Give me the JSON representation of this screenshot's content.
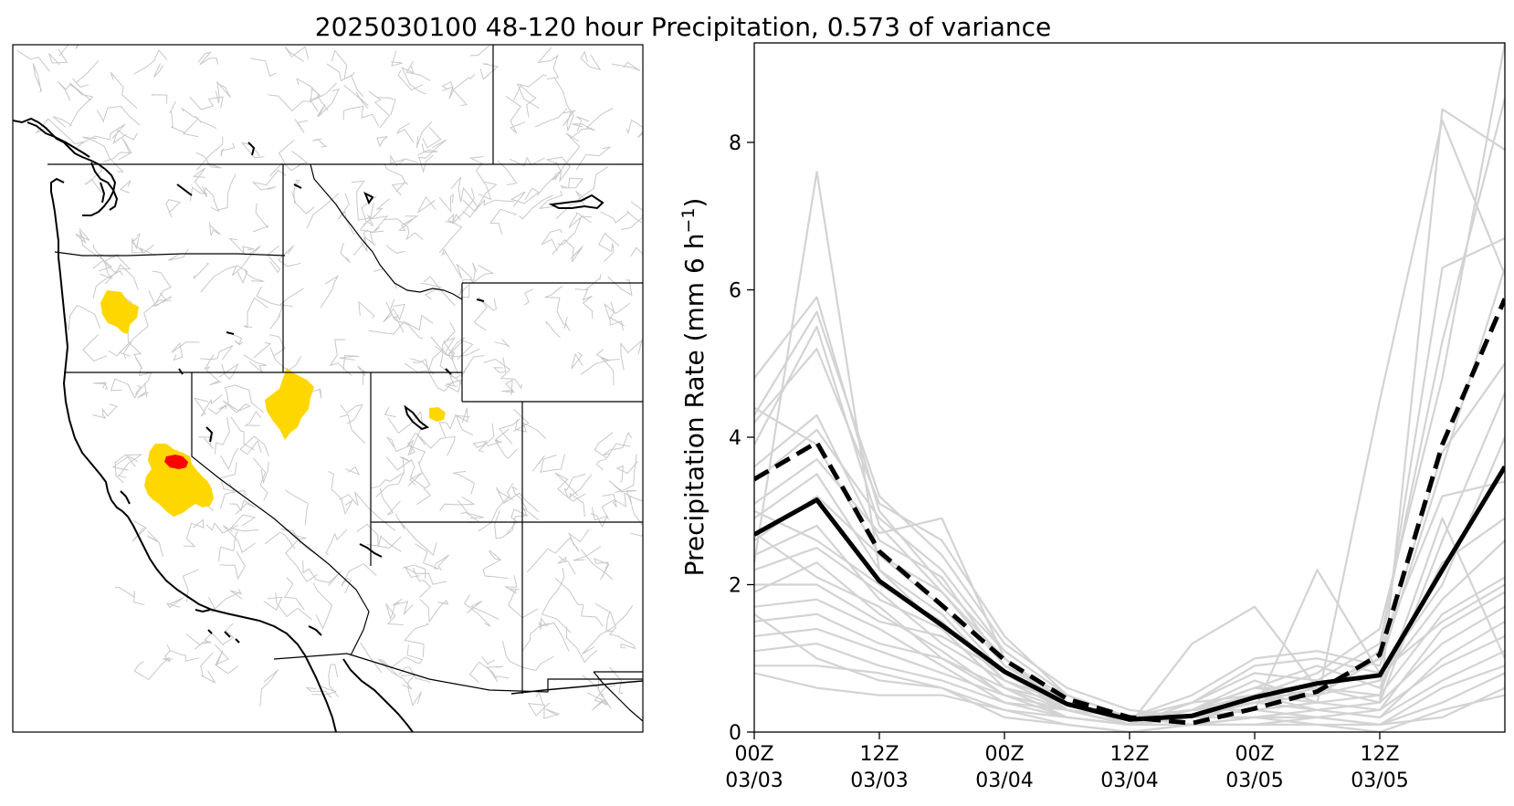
{
  "figure": {
    "title": "2025030100 48-120 hour Precipitation, 0.573 of variance"
  },
  "colors": {
    "map_fill_high": "#ffd700",
    "map_fill_peak": "#ff0000",
    "map_border": "#000000",
    "basin_lines": "#c8c8c8",
    "ensemble_member": "#d3d3d3",
    "mean_line": "#000000"
  },
  "map_panel": {
    "type": "map",
    "region": "Western United States",
    "layers": [
      "state borders",
      "coastlines",
      "lakes",
      "river basins",
      "precipitation highlight"
    ],
    "highlighted_basins": [
      {
        "area": "western Oregon",
        "color": "gold"
      },
      {
        "area": "southwestern Idaho",
        "color": "gold"
      },
      {
        "area": "north-central Utah",
        "color": "gold"
      },
      {
        "area": "northern Sierra Nevada, California",
        "color": "gold"
      },
      {
        "area": "northern Sierra Nevada, California",
        "color": "red"
      }
    ]
  },
  "chart_data": {
    "type": "line",
    "title": "2025030100 48-120 hour Precipitation, 0.573 of variance",
    "xlabel": "",
    "ylabel": "Precipitation Rate (mm 6 h",
    "ylabel_sup": "−1",
    "ylabel_close": ")",
    "x": [
      "2025-03-03 00Z",
      "2025-03-03 06Z",
      "2025-03-03 12Z",
      "2025-03-03 18Z",
      "2025-03-04 00Z",
      "2025-03-04 06Z",
      "2025-03-04 12Z",
      "2025-03-04 18Z",
      "2025-03-05 00Z",
      "2025-03-05 06Z",
      "2025-03-05 12Z",
      "2025-03-05 18Z",
      "2025-03-06 00Z"
    ],
    "xticks": [
      {
        "index": 0,
        "line1": "00Z",
        "line2": "03/03"
      },
      {
        "index": 2,
        "line1": "12Z",
        "line2": "03/03"
      },
      {
        "index": 4,
        "line1": "00Z",
        "line2": "03/04"
      },
      {
        "index": 6,
        "line1": "12Z",
        "line2": "03/04"
      },
      {
        "index": 8,
        "line1": "00Z",
        "line2": "03/05"
      },
      {
        "index": 10,
        "line1": "12Z",
        "line2": "03/05"
      }
    ],
    "ylim": [
      0,
      9.35
    ],
    "yticks": [
      0,
      2,
      4,
      6,
      8
    ],
    "grid": false,
    "legend": "none",
    "series": [
      {
        "role": "ensemble member",
        "style": "solid-grey",
        "values": [
          2.3,
          7.6,
          2.2,
          1.4,
          0.6,
          0.3,
          0.1,
          0.1,
          0.2,
          0.3,
          0.4,
          8.45,
          7.9
        ]
      },
      {
        "role": "ensemble member",
        "style": "solid-grey",
        "values": [
          4.8,
          5.9,
          3.0,
          2.0,
          1.1,
          0.5,
          0.2,
          0.3,
          0.6,
          0.5,
          1.0,
          6.3,
          6.7
        ]
      },
      {
        "role": "ensemble member",
        "style": "solid-grey",
        "values": [
          4.3,
          5.7,
          3.2,
          2.4,
          1.2,
          0.6,
          0.3,
          0.2,
          0.5,
          0.8,
          1.4,
          4.8,
          9.35
        ]
      },
      {
        "role": "ensemble member",
        "style": "solid-grey",
        "values": [
          3.9,
          5.5,
          2.8,
          1.9,
          1.0,
          0.4,
          0.2,
          0.4,
          0.8,
          0.7,
          1.2,
          5.3,
          8.6
        ]
      },
      {
        "role": "ensemble member",
        "style": "solid-grey",
        "values": [
          4.2,
          5.2,
          3.1,
          2.6,
          1.3,
          0.5,
          0.2,
          0.5,
          1.0,
          1.1,
          0.9,
          3.6,
          6.3
        ]
      },
      {
        "role": "ensemble member",
        "style": "solid-grey",
        "values": [
          3.6,
          4.3,
          2.6,
          2.1,
          0.9,
          0.4,
          0.1,
          0.3,
          0.7,
          0.4,
          4.5,
          8.3,
          6.2
        ]
      },
      {
        "role": "ensemble member",
        "style": "solid-grey",
        "values": [
          3.4,
          4.1,
          2.9,
          2.2,
          1.1,
          0.5,
          0.2,
          0.3,
          0.4,
          0.6,
          1.0,
          3.8,
          5.0
        ]
      },
      {
        "role": "ensemble member",
        "style": "solid-grey",
        "values": [
          4.4,
          3.9,
          2.4,
          1.7,
          0.8,
          0.4,
          0.1,
          1.2,
          1.7,
          0.6,
          0.4,
          2.6,
          4.6
        ]
      },
      {
        "role": "ensemble member",
        "style": "solid-grey",
        "values": [
          3.1,
          3.7,
          2.7,
          2.9,
          1.0,
          0.3,
          0.2,
          0.2,
          0.3,
          2.2,
          0.8,
          2.0,
          4.0
        ]
      },
      {
        "role": "ensemble member",
        "style": "solid-grey",
        "values": [
          2.9,
          3.5,
          2.2,
          1.6,
          0.7,
          0.3,
          0.1,
          0.4,
          0.5,
          0.5,
          1.1,
          3.2,
          3.4
        ]
      },
      {
        "role": "ensemble member",
        "style": "solid-grey",
        "values": [
          2.6,
          3.2,
          2.4,
          1.9,
          0.9,
          0.5,
          0.2,
          0.3,
          0.6,
          0.9,
          0.6,
          2.3,
          2.9
        ]
      },
      {
        "role": "ensemble member",
        "style": "solid-grey",
        "values": [
          2.4,
          2.8,
          1.8,
          1.4,
          0.6,
          0.2,
          0.1,
          0.2,
          0.4,
          0.5,
          0.7,
          1.8,
          2.6
        ]
      },
      {
        "role": "ensemble member",
        "style": "solid-grey",
        "values": [
          2.2,
          2.5,
          1.9,
          1.2,
          0.7,
          0.4,
          0.2,
          0.3,
          0.6,
          0.6,
          0.5,
          1.6,
          2.1
        ]
      },
      {
        "role": "ensemble member",
        "style": "solid-grey",
        "values": [
          1.9,
          2.3,
          1.6,
          1.1,
          0.5,
          0.3,
          0.1,
          0.2,
          0.3,
          0.4,
          0.3,
          1.4,
          1.9
        ]
      },
      {
        "role": "ensemble member",
        "style": "solid-grey",
        "values": [
          2.0,
          2.0,
          1.5,
          1.3,
          0.8,
          0.3,
          0.2,
          0.1,
          0.5,
          0.3,
          0.4,
          1.2,
          1.7
        ]
      },
      {
        "role": "ensemble member",
        "style": "solid-grey",
        "values": [
          1.7,
          1.8,
          1.4,
          0.9,
          0.4,
          0.2,
          0.1,
          0.2,
          0.4,
          0.3,
          0.2,
          1.0,
          1.5
        ]
      },
      {
        "role": "ensemble member",
        "style": "solid-grey",
        "values": [
          1.5,
          1.6,
          1.2,
          1.0,
          0.6,
          0.4,
          0.2,
          0.3,
          0.3,
          0.2,
          0.3,
          0.9,
          1.3
        ]
      },
      {
        "role": "ensemble member",
        "style": "solid-grey",
        "values": [
          1.3,
          1.4,
          1.1,
          0.8,
          0.5,
          0.2,
          0.1,
          0.1,
          0.2,
          0.3,
          0.2,
          0.7,
          1.1
        ]
      },
      {
        "role": "ensemble member",
        "style": "solid-grey",
        "values": [
          1.1,
          1.2,
          0.9,
          0.7,
          0.4,
          0.3,
          0.1,
          0.2,
          0.2,
          0.2,
          0.1,
          0.6,
          0.9
        ]
      },
      {
        "role": "ensemble member",
        "style": "solid-grey",
        "values": [
          0.9,
          0.9,
          0.8,
          0.6,
          0.3,
          0.2,
          0.1,
          0.1,
          0.1,
          0.2,
          0.1,
          0.4,
          0.8
        ]
      },
      {
        "role": "ensemble member",
        "style": "solid-grey",
        "values": [
          0.8,
          0.6,
          0.5,
          0.5,
          0.3,
          0.1,
          0.0,
          0.1,
          0.1,
          0.1,
          0.0,
          0.3,
          0.5
        ]
      },
      {
        "role": "ensemble member",
        "style": "solid-grey",
        "values": [
          3.0,
          2.6,
          2.0,
          1.5,
          0.7,
          0.4,
          0.2,
          0.4,
          0.9,
          1.0,
          0.8,
          1.5,
          2.0
        ]
      },
      {
        "role": "ensemble member",
        "style": "solid-grey",
        "values": [
          2.7,
          2.1,
          1.7,
          1.0,
          0.5,
          0.3,
          0.1,
          0.3,
          0.5,
          0.4,
          0.5,
          2.9,
          1.0
        ]
      },
      {
        "role": "ensemble member",
        "style": "solid-grey",
        "values": [
          1.6,
          1.0,
          0.7,
          0.6,
          0.2,
          0.1,
          0.0,
          0.1,
          0.2,
          0.1,
          0.1,
          0.2,
          0.6
        ]
      },
      {
        "role": "mean",
        "style": "solid-black",
        "values": [
          2.68,
          3.15,
          2.05,
          1.45,
          0.82,
          0.38,
          0.17,
          0.22,
          0.47,
          0.66,
          0.77,
          2.2,
          3.6
        ]
      },
      {
        "role": "median",
        "style": "dashed-black",
        "values": [
          3.43,
          3.93,
          2.45,
          1.72,
          0.98,
          0.45,
          0.2,
          0.12,
          0.32,
          0.55,
          1.05,
          3.9,
          5.88
        ]
      }
    ]
  }
}
